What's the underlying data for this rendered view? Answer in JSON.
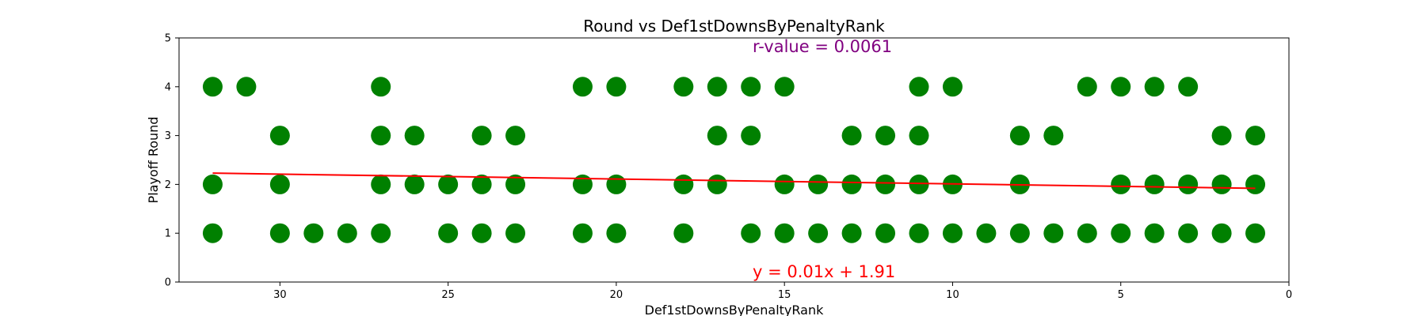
{
  "chart_data": {
    "type": "scatter",
    "title": "Round vs Def1stDownsByPenaltyRank",
    "xlabel": "Def1stDownsByPenaltyRank",
    "ylabel": "Playoff Round",
    "xlim": [
      33,
      0
    ],
    "ylim": [
      0,
      5
    ],
    "x_inverted": true,
    "x_ticks": [
      30,
      25,
      20,
      15,
      10,
      5,
      0
    ],
    "y_ticks": [
      0,
      1,
      2,
      3,
      4,
      5
    ],
    "grid": false,
    "point_color": "#008000",
    "line_color": "#ff0000",
    "r_color": "#800080",
    "annotations": {
      "r_value": "r-value = 0.0061",
      "equation": "y = 0.01x + 1.91"
    },
    "regression": {
      "slope": 0.01,
      "intercept": 1.91,
      "x_range": [
        32,
        1
      ]
    },
    "points": [
      {
        "x": 32,
        "y": 4
      },
      {
        "x": 31,
        "y": 4
      },
      {
        "x": 27,
        "y": 4
      },
      {
        "x": 21,
        "y": 4
      },
      {
        "x": 20,
        "y": 4
      },
      {
        "x": 18,
        "y": 4
      },
      {
        "x": 17,
        "y": 4
      },
      {
        "x": 16,
        "y": 4
      },
      {
        "x": 15,
        "y": 4
      },
      {
        "x": 11,
        "y": 4
      },
      {
        "x": 10,
        "y": 4
      },
      {
        "x": 6,
        "y": 4
      },
      {
        "x": 5,
        "y": 4
      },
      {
        "x": 4,
        "y": 4
      },
      {
        "x": 3,
        "y": 4
      },
      {
        "x": 30,
        "y": 3
      },
      {
        "x": 27,
        "y": 3
      },
      {
        "x": 26,
        "y": 3
      },
      {
        "x": 24,
        "y": 3
      },
      {
        "x": 23,
        "y": 3
      },
      {
        "x": 17,
        "y": 3
      },
      {
        "x": 16,
        "y": 3
      },
      {
        "x": 13,
        "y": 3
      },
      {
        "x": 12,
        "y": 3
      },
      {
        "x": 11,
        "y": 3
      },
      {
        "x": 8,
        "y": 3
      },
      {
        "x": 7,
        "y": 3
      },
      {
        "x": 2,
        "y": 3
      },
      {
        "x": 1,
        "y": 3
      },
      {
        "x": 32,
        "y": 2
      },
      {
        "x": 30,
        "y": 2
      },
      {
        "x": 27,
        "y": 2
      },
      {
        "x": 26,
        "y": 2
      },
      {
        "x": 25,
        "y": 2
      },
      {
        "x": 24,
        "y": 2
      },
      {
        "x": 23,
        "y": 2
      },
      {
        "x": 21,
        "y": 2
      },
      {
        "x": 20,
        "y": 2
      },
      {
        "x": 18,
        "y": 2
      },
      {
        "x": 17,
        "y": 2
      },
      {
        "x": 15,
        "y": 2
      },
      {
        "x": 14,
        "y": 2
      },
      {
        "x": 13,
        "y": 2
      },
      {
        "x": 12,
        "y": 2
      },
      {
        "x": 11,
        "y": 2
      },
      {
        "x": 10,
        "y": 2
      },
      {
        "x": 8,
        "y": 2
      },
      {
        "x": 5,
        "y": 2
      },
      {
        "x": 4,
        "y": 2
      },
      {
        "x": 3,
        "y": 2
      },
      {
        "x": 2,
        "y": 2
      },
      {
        "x": 1,
        "y": 2
      },
      {
        "x": 32,
        "y": 1
      },
      {
        "x": 30,
        "y": 1
      },
      {
        "x": 29,
        "y": 1
      },
      {
        "x": 28,
        "y": 1
      },
      {
        "x": 27,
        "y": 1
      },
      {
        "x": 25,
        "y": 1
      },
      {
        "x": 24,
        "y": 1
      },
      {
        "x": 23,
        "y": 1
      },
      {
        "x": 21,
        "y": 1
      },
      {
        "x": 20,
        "y": 1
      },
      {
        "x": 18,
        "y": 1
      },
      {
        "x": 16,
        "y": 1
      },
      {
        "x": 15,
        "y": 1
      },
      {
        "x": 14,
        "y": 1
      },
      {
        "x": 13,
        "y": 1
      },
      {
        "x": 12,
        "y": 1
      },
      {
        "x": 11,
        "y": 1
      },
      {
        "x": 10,
        "y": 1
      },
      {
        "x": 9,
        "y": 1
      },
      {
        "x": 8,
        "y": 1
      },
      {
        "x": 7,
        "y": 1
      },
      {
        "x": 6,
        "y": 1
      },
      {
        "x": 5,
        "y": 1
      },
      {
        "x": 4,
        "y": 1
      },
      {
        "x": 3,
        "y": 1
      },
      {
        "x": 2,
        "y": 1
      },
      {
        "x": 1,
        "y": 1
      }
    ]
  }
}
